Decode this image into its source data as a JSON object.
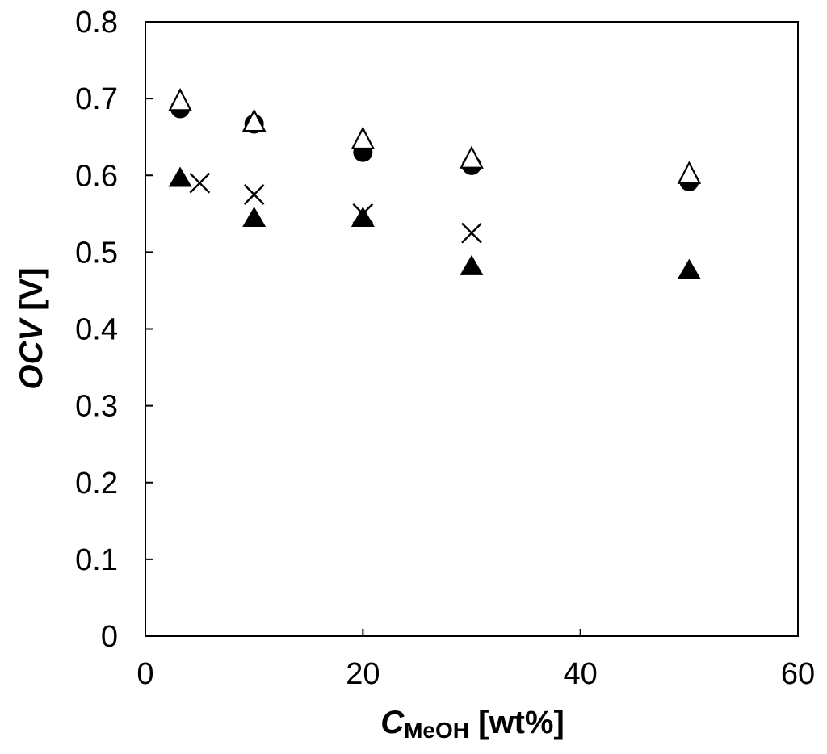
{
  "chart_data": {
    "type": "scatter",
    "xlabel": {
      "main": "C",
      "subscript": "MeOH",
      "unit": " [wt%]"
    },
    "ylabel": {
      "main": "OCV",
      "unit": " [V]"
    },
    "xlim": [
      0,
      60
    ],
    "ylim": [
      0,
      0.8
    ],
    "xticks": [
      "0",
      "20",
      "40",
      "60"
    ],
    "yticks": [
      "0",
      "0.1",
      "0.2",
      "0.3",
      "0.4",
      "0.5",
      "0.6",
      "0.7",
      "0.8"
    ],
    "grid": false,
    "series": [
      {
        "marker": "circle-filled",
        "x": [
          3.2,
          10,
          20,
          30,
          50
        ],
        "y": [
          0.687,
          0.667,
          0.63,
          0.613,
          0.592
        ]
      },
      {
        "marker": "triangle-open",
        "x": [
          3.2,
          10,
          20,
          30,
          50
        ],
        "y": [
          0.695,
          0.668,
          0.645,
          0.62,
          0.6
        ]
      },
      {
        "marker": "triangle-filled",
        "x": [
          3.2,
          10,
          20,
          30,
          50
        ],
        "y": [
          0.595,
          0.543,
          0.543,
          0.48,
          0.475
        ]
      },
      {
        "marker": "cross",
        "x": [
          5,
          10,
          20,
          30
        ],
        "y": [
          0.59,
          0.575,
          0.55,
          0.525
        ]
      }
    ]
  }
}
